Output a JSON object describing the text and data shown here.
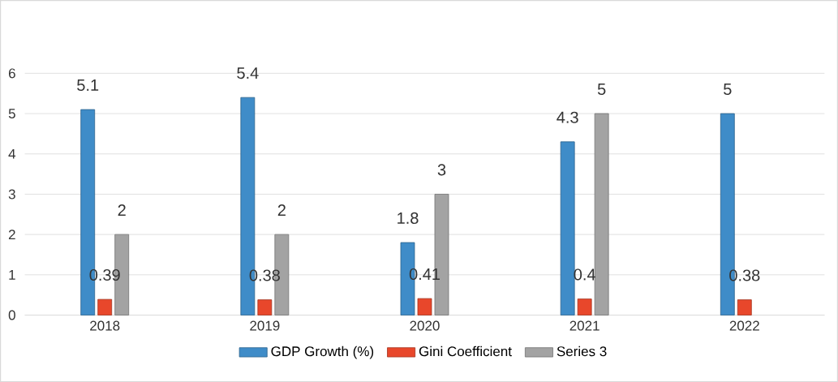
{
  "chart_data": {
    "type": "bar",
    "categories": [
      "2018",
      "2019",
      "2020",
      "2021",
      "2022"
    ],
    "series": [
      {
        "name": "GDP Growth (%)",
        "color": "#3f8cc8",
        "values": [
          5.1,
          5.4,
          1.8,
          4.3,
          5
        ]
      },
      {
        "name": "Gini Coefficient",
        "color": "#e8472b",
        "values": [
          0.39,
          0.38,
          0.41,
          0.4,
          0.38
        ]
      },
      {
        "name": "Series 3",
        "color": "#a3a3a3",
        "values": [
          2,
          2,
          3,
          5,
          null
        ]
      }
    ],
    "ylim": [
      0,
      6
    ],
    "yticks": [
      0,
      1,
      2,
      3,
      4,
      5,
      6
    ],
    "grid": "y",
    "legend": "bottom",
    "data_labels": true
  }
}
